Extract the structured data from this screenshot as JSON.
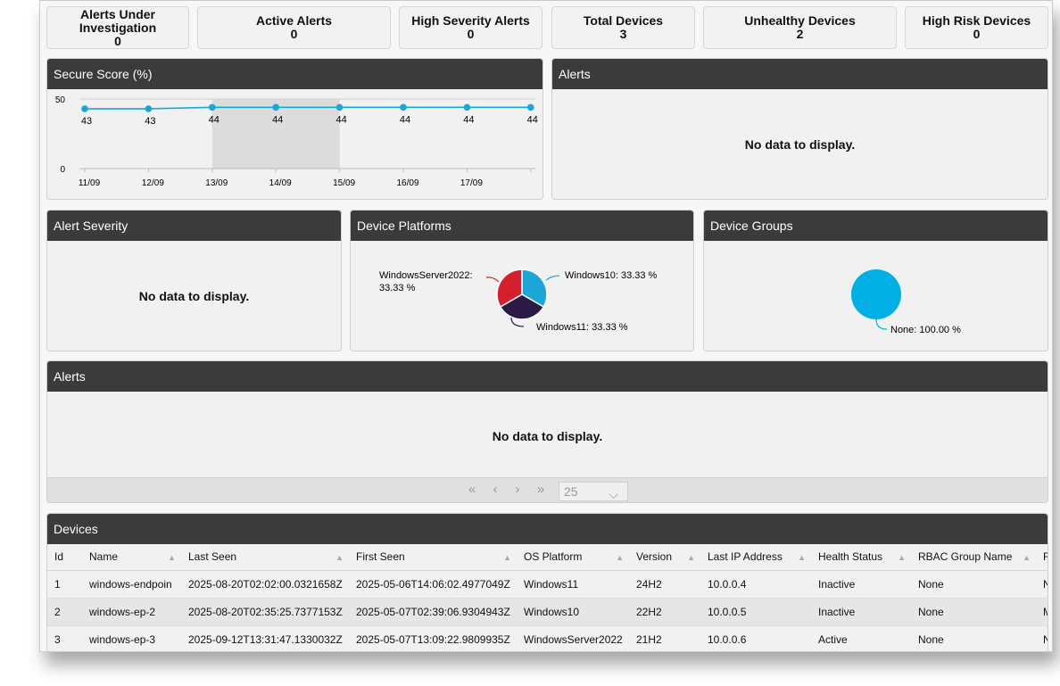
{
  "kpis": [
    {
      "label": "Alerts Under Investigation",
      "value": "0"
    },
    {
      "label": "Active Alerts",
      "value": "0"
    },
    {
      "label": "High Severity Alerts",
      "value": "0"
    },
    {
      "label": "Total Devices",
      "value": "3"
    },
    {
      "label": "Unhealthy Devices",
      "value": "2"
    },
    {
      "label": "High Risk Devices",
      "value": "0"
    }
  ],
  "secure_score": {
    "title": "Secure Score (%)",
    "chart_data": {
      "type": "line",
      "categories": [
        "11/09",
        "12/09",
        "13/09",
        "14/09",
        "15/09",
        "16/09",
        "17/09",
        ""
      ],
      "values": [
        43,
        43,
        44,
        44,
        44,
        44,
        44,
        44
      ],
      "y_ticks": [
        "50",
        "0"
      ],
      "ylim": [
        0,
        50
      ],
      "highlight_range": [
        "13/09",
        "15/09"
      ],
      "line_color": "#1aa7d8"
    }
  },
  "alerts_panel": {
    "title": "Alerts",
    "empty_text": "No data to display."
  },
  "alert_severity": {
    "title": "Alert Severity",
    "empty_text": "No data to display."
  },
  "device_platforms": {
    "title": "Device Platforms",
    "chart_data": {
      "type": "pie",
      "slices": [
        {
          "label": "Windows10: 33.33 %",
          "value": 33.33,
          "color": "#1aa7d8"
        },
        {
          "label": "Windows11: 33.33 %",
          "value": 33.33,
          "color": "#2a1a45"
        },
        {
          "label": "WindowsServer2022:",
          "label2": "33.33 %",
          "value": 33.33,
          "color": "#d61f2c"
        }
      ]
    }
  },
  "device_groups": {
    "title": "Device Groups",
    "chart_data": {
      "type": "pie",
      "slices": [
        {
          "label": "None: 100.00 %",
          "value": 100,
          "color": "#00b0e4"
        }
      ]
    }
  },
  "alerts_table": {
    "title": "Alerts",
    "empty_text": "No data to display.",
    "pager": {
      "first": "«",
      "prev": "‹",
      "next": "›",
      "last": "»",
      "page_size": "25",
      "chevron": "⌵"
    }
  },
  "devices": {
    "title": "Devices",
    "sort_glyph": "▲",
    "columns": [
      "Id",
      "Name",
      "Last Seen",
      "First Seen",
      "OS Platform",
      "Version",
      "Last IP Address",
      "Health Status",
      "RBAC Group Name",
      "R"
    ],
    "rows": [
      [
        "1",
        "windows-endpoin",
        "2025-08-20T02:02:00.0321658Z",
        "2025-05-06T14:06:02.4977049Z",
        "Windows11",
        "24H2",
        "10.0.0.4",
        "Inactive",
        "None",
        "N"
      ],
      [
        "2",
        "windows-ep-2",
        "2025-08-20T02:35:25.7377153Z",
        "2025-05-07T02:39:06.9304943Z",
        "Windows10",
        "22H2",
        "10.0.0.5",
        "Inactive",
        "None",
        "M"
      ],
      [
        "3",
        "windows-ep-3",
        "2025-09-12T13:31:47.1330032Z",
        "2025-05-07T13:09:22.9809935Z",
        "WindowsServer2022",
        "21H2",
        "10.0.0.6",
        "Active",
        "None",
        "N"
      ]
    ]
  }
}
